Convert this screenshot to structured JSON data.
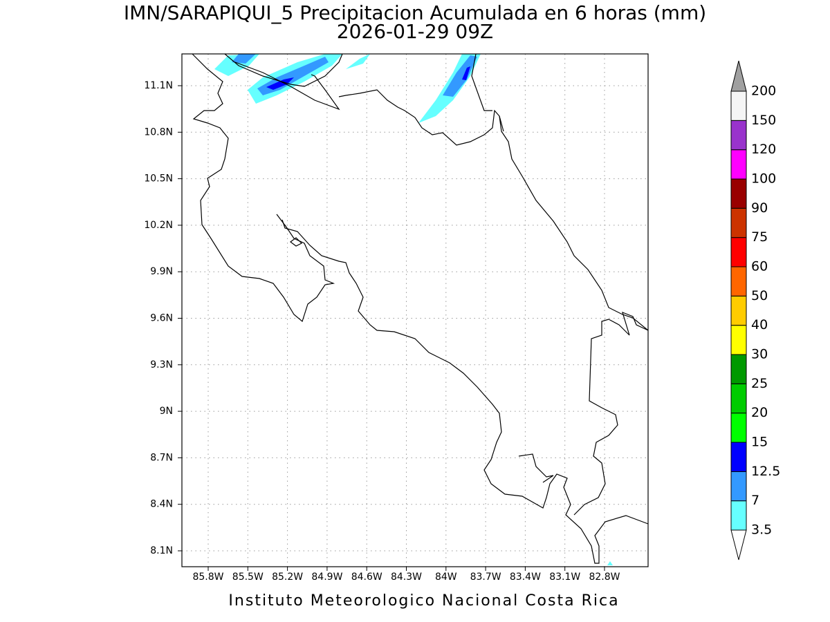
{
  "map": {
    "title": "IMN/SARAPIQUI_5 Precipitacion Acumulada en 6 horas (mm)",
    "subtitle": "2026-01-29 09Z",
    "xticks": [
      "85.8W",
      "85.5W",
      "85.2W",
      "84.9W",
      "84.6W",
      "84.3W",
      "84W",
      "83.7W",
      "83.4W",
      "83.1W",
      "82.8W"
    ],
    "yticks": [
      "11.1N",
      "10.8N",
      "10.5N",
      "10.2N",
      "9.9N",
      "9.6N",
      "9.3N",
      "9N",
      "8.7N",
      "8.4N",
      "8.1N"
    ],
    "colorbar": {
      "levels": [
        3.5,
        7,
        12.5,
        15,
        20,
        25,
        30,
        40,
        50,
        60,
        75,
        90,
        100,
        120,
        150,
        200
      ],
      "colors": [
        "#66ffff",
        "#3399ff",
        "#0000ff",
        "#00ff00",
        "#00cc00",
        "#009900",
        "#ffff00",
        "#ffcc00",
        "#ff6600",
        "#ff0000",
        "#cc3300",
        "#990000",
        "#ff00ff",
        "#9933cc",
        "#f5f5f5"
      ],
      "over_color": "#a0a0a0",
      "under_color": "#ffffff"
    },
    "footer": "Instituto Meteorologico Nacional Costa Rica"
  }
}
